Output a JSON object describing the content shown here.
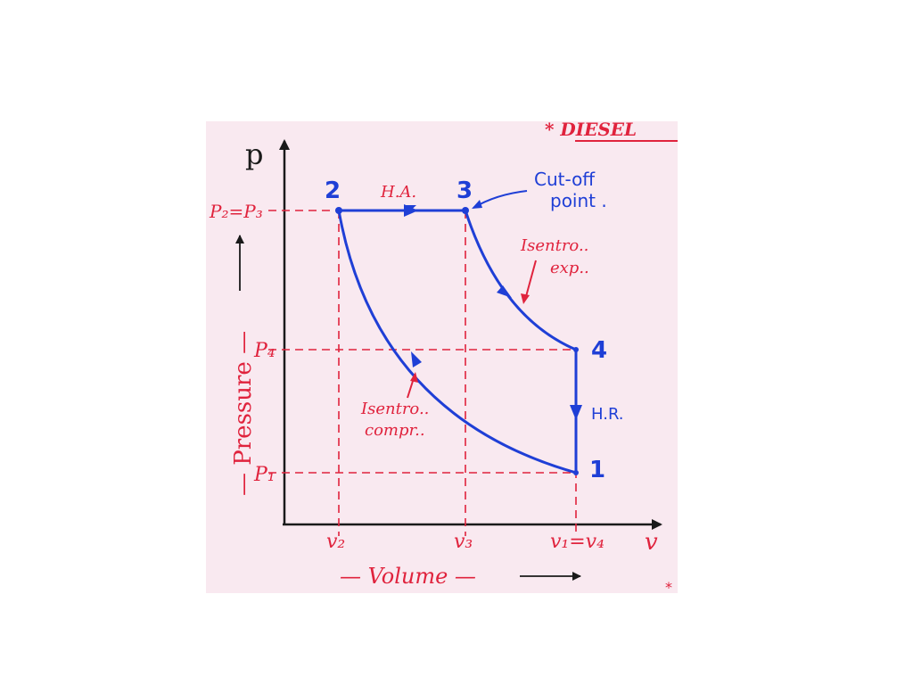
{
  "header": {
    "title_fragment": "* DIESEL"
  },
  "axes": {
    "p_symbol": "p",
    "v_symbol": "v",
    "y_caption": "— Pressure —",
    "x_caption": "— Volume —"
  },
  "pressure_ticks": {
    "p23": "P₂=P₃",
    "p4": "P₄",
    "p1": "P₁"
  },
  "volume_ticks": {
    "v2": "v₂",
    "v3": "v₃",
    "v14": "v₁=v₄"
  },
  "states": {
    "s1": "1",
    "s2": "2",
    "s3": "3",
    "s4": "4"
  },
  "processes": {
    "heat_addition": "H.A.",
    "heat_rejection": "H.R.",
    "expansion_line1": "Isentro..",
    "expansion_line2": "exp..",
    "compression_line1": "Isentro..",
    "compression_line2": "compr..",
    "cutoff_line1": "Cut-off",
    "cutoff_line2": "point ."
  },
  "footer": {
    "stray_mark": "*"
  },
  "colors": {
    "ink_blue": "#1f3fd6",
    "ink_red": "#e0233d",
    "axis_black": "#1a1a1a",
    "paper": "#f9e9f0"
  }
}
